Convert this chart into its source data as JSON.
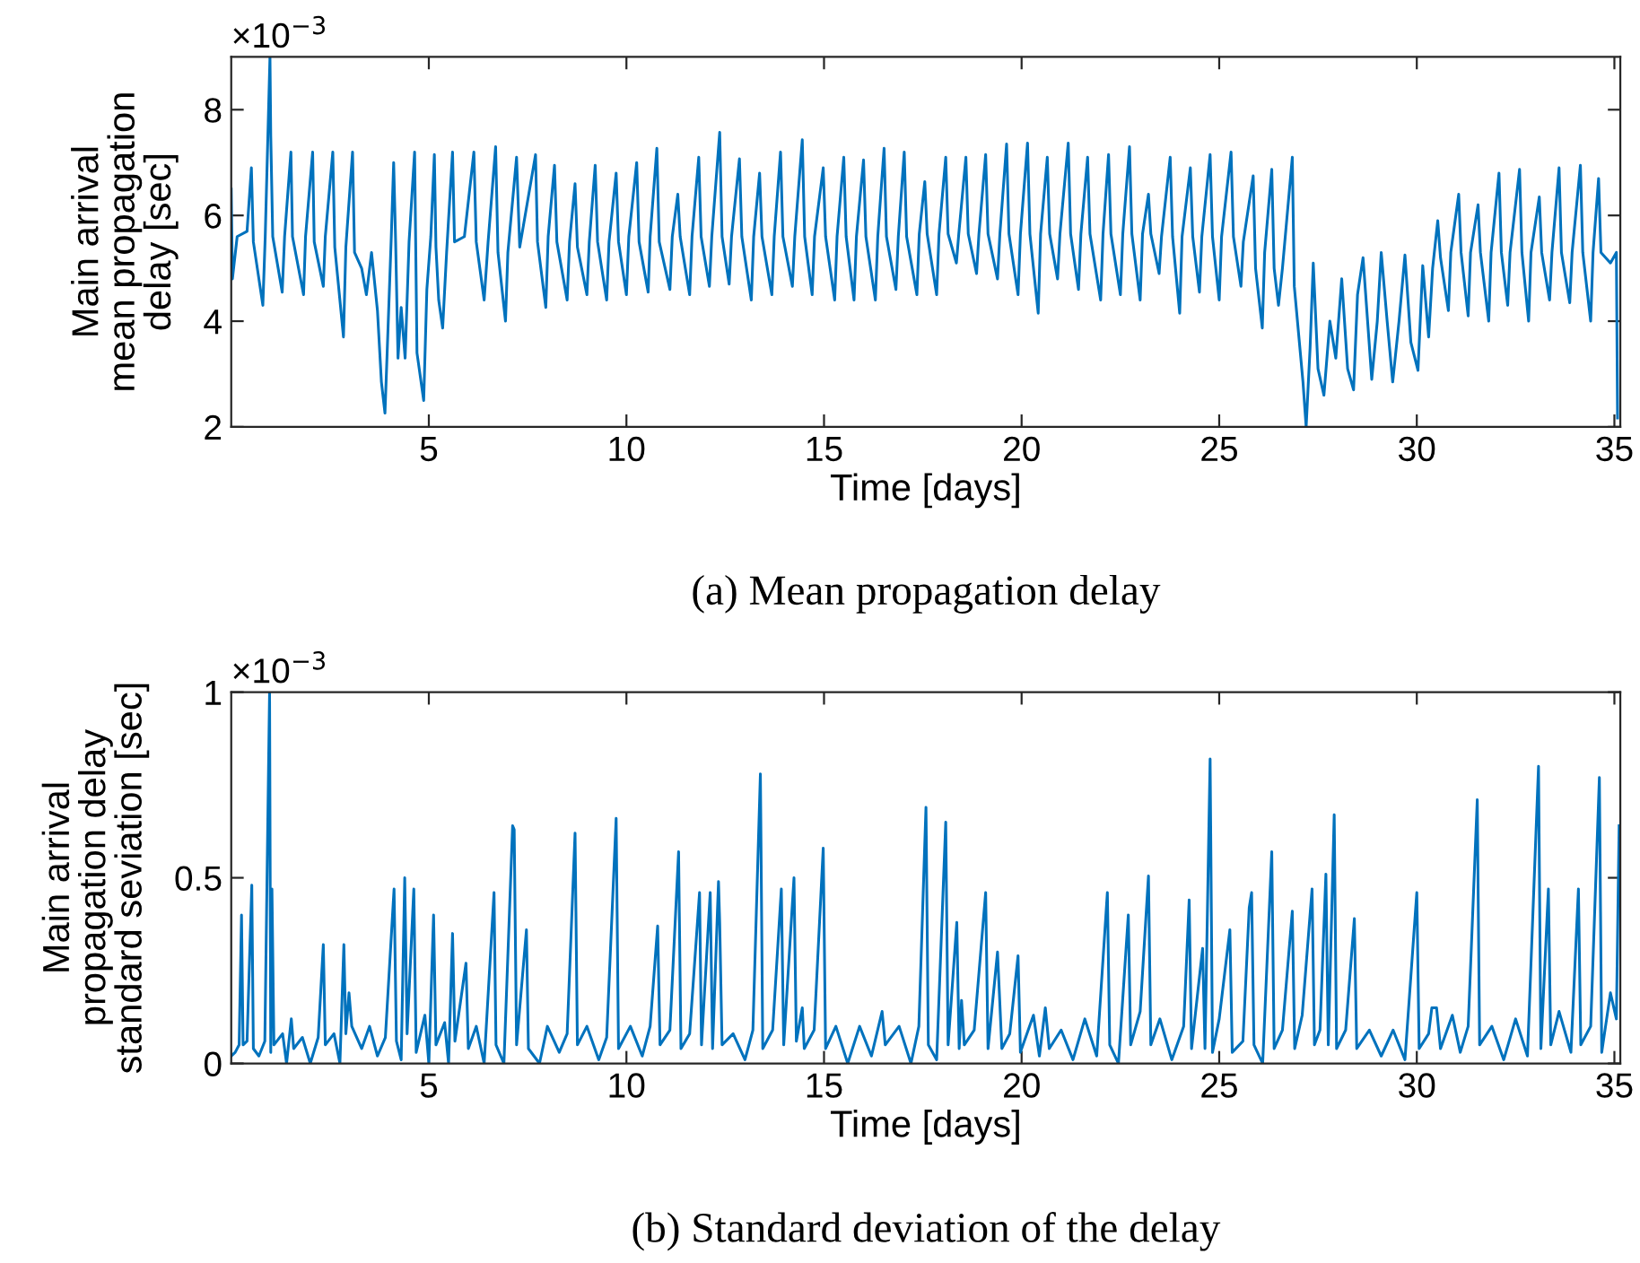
{
  "chart_data": [
    {
      "type": "line",
      "xlabel": "Time [days]",
      "ylabel": "Main arrival\nmean propagation\ndelay [sec]",
      "annotations": [
        "×10$^{−3}$",
        "(a) Mean propagation delay"
      ],
      "xlim": [
        0,
        35.15
      ],
      "xticks": [
        5,
        10,
        15,
        20,
        25,
        30,
        35
      ],
      "ylim": [
        2,
        9
      ],
      "yticks": [
        2,
        4,
        6,
        8
      ],
      "grid": false,
      "series": [
        {
          "color": "#0072bd",
          "x": [
            0.0,
            0.03,
            0.15,
            0.4,
            0.51,
            0.56,
            0.8,
            0.86,
            0.98,
            1.0,
            1.05,
            1.29,
            1.35,
            1.51,
            1.55,
            1.83,
            1.88,
            2.06,
            2.1,
            2.33,
            2.38,
            2.57,
            2.62,
            2.84,
            2.9,
            3.07,
            3.12,
            3.3,
            3.42,
            3.55,
            3.7,
            3.8,
            3.89,
            3.95,
            4.05,
            4.11,
            4.16,
            4.22,
            4.3,
            4.4,
            4.5,
            4.64,
            4.7,
            4.87,
            4.95,
            5.05,
            5.14,
            5.18,
            5.25,
            5.35,
            5.45,
            5.6,
            5.65,
            5.9,
            6.14,
            6.2,
            6.4,
            6.5,
            6.69,
            6.75,
            6.94,
            7.0,
            7.22,
            7.3,
            7.7,
            7.75,
            7.96,
            8.02,
            8.18,
            8.24,
            8.5,
            8.56,
            8.7,
            8.76,
            9.0,
            9.06,
            9.21,
            9.27,
            9.5,
            9.56,
            9.74,
            9.8,
            10.0,
            10.06,
            10.26,
            10.32,
            10.55,
            10.6,
            10.77,
            10.83,
            11.1,
            11.16,
            11.3,
            11.36,
            11.6,
            11.66,
            11.83,
            11.89,
            12.1,
            12.16,
            12.36,
            12.42,
            12.6,
            12.66,
            12.86,
            12.92,
            13.16,
            13.22,
            13.37,
            13.43,
            13.68,
            13.74,
            13.9,
            13.96,
            14.2,
            14.26,
            14.45,
            14.51,
            14.7,
            14.76,
            14.98,
            15.04,
            15.27,
            15.33,
            15.5,
            15.56,
            15.76,
            15.82,
            16.0,
            16.06,
            16.3,
            16.36,
            16.52,
            16.58,
            16.82,
            16.88,
            17.03,
            17.09,
            17.35,
            17.41,
            17.55,
            17.61,
            17.85,
            17.91,
            18.08,
            18.14,
            18.35,
            18.41,
            18.59,
            18.65,
            18.86,
            18.92,
            19.09,
            19.15,
            19.39,
            19.45,
            19.62,
            19.68,
            19.91,
            19.97,
            20.15,
            20.21,
            20.42,
            20.48,
            20.65,
            20.71,
            20.91,
            20.97,
            21.18,
            21.24,
            21.44,
            21.5,
            21.67,
            21.73,
            22.0,
            22.06,
            22.2,
            22.26,
            22.5,
            22.56,
            22.73,
            22.79,
            23.0,
            23.06,
            23.21,
            23.27,
            23.48,
            23.54,
            23.76,
            23.82,
            24.0,
            24.06,
            24.27,
            24.33,
            24.5,
            24.56,
            24.77,
            24.83,
            25.0,
            25.06,
            25.3,
            25.36,
            25.55,
            25.61,
            25.86,
            25.92,
            26.09,
            26.15,
            26.33,
            26.39,
            26.5,
            26.6,
            26.85,
            26.9,
            27.12,
            27.2,
            27.3,
            27.38,
            27.5,
            27.65,
            27.8,
            27.95,
            28.1,
            28.25,
            28.4,
            28.5,
            28.64,
            28.86,
            29.0,
            29.1,
            29.25,
            29.39,
            29.55,
            29.7,
            29.85,
            30.03,
            30.15,
            30.3,
            30.4,
            30.53,
            30.6,
            30.8,
            30.86,
            31.06,
            31.12,
            31.3,
            31.36,
            31.55,
            31.61,
            31.82,
            31.88,
            32.08,
            32.14,
            32.3,
            32.36,
            32.6,
            32.66,
            32.83,
            32.89,
            33.1,
            33.16,
            33.36,
            33.42,
            33.6,
            33.66,
            33.87,
            33.93,
            34.14,
            34.2,
            34.4,
            34.46,
            34.6,
            34.66,
            34.9,
            35.05,
            35.08
          ],
          "values": [
            6.5,
            4.8,
            5.6,
            5.7,
            6.9,
            5.5,
            4.3,
            5.6,
            9.0,
            7.5,
            5.6,
            4.55,
            5.6,
            7.2,
            5.6,
            4.5,
            5.6,
            7.2,
            5.5,
            4.66,
            5.6,
            7.2,
            5.4,
            3.7,
            5.4,
            7.2,
            5.3,
            5.0,
            4.5,
            5.3,
            4.2,
            2.85,
            2.26,
            3.5,
            5.6,
            7.0,
            5.5,
            3.3,
            4.26,
            3.3,
            5.5,
            7.2,
            3.4,
            2.5,
            4.6,
            5.6,
            7.15,
            5.4,
            4.4,
            3.87,
            5.3,
            7.2,
            5.5,
            5.6,
            7.2,
            5.5,
            4.4,
            5.5,
            7.3,
            5.3,
            4.0,
            5.3,
            7.1,
            5.4,
            7.15,
            5.5,
            4.26,
            5.6,
            6.95,
            5.5,
            4.4,
            5.5,
            6.6,
            5.4,
            4.5,
            5.5,
            6.95,
            5.5,
            4.4,
            5.5,
            6.8,
            5.5,
            4.5,
            5.6,
            7.0,
            5.5,
            4.55,
            5.6,
            7.27,
            5.5,
            4.6,
            5.6,
            6.4,
            5.6,
            4.5,
            5.6,
            7.1,
            5.6,
            4.66,
            5.6,
            7.57,
            5.6,
            4.7,
            5.6,
            7.07,
            5.6,
            4.4,
            5.6,
            6.8,
            5.6,
            4.5,
            5.6,
            7.2,
            5.6,
            4.66,
            5.6,
            7.43,
            5.6,
            4.5,
            5.6,
            6.9,
            5.6,
            4.4,
            5.6,
            7.1,
            5.6,
            4.4,
            5.6,
            7.05,
            5.6,
            4.4,
            5.6,
            7.27,
            5.6,
            4.6,
            5.6,
            7.2,
            5.6,
            4.5,
            5.65,
            6.64,
            5.65,
            4.5,
            5.65,
            7.1,
            5.65,
            5.1,
            5.65,
            7.1,
            5.65,
            4.9,
            5.65,
            7.15,
            5.65,
            4.8,
            5.65,
            7.35,
            5.65,
            4.5,
            5.65,
            7.37,
            5.65,
            4.15,
            5.65,
            7.1,
            5.65,
            4.8,
            5.65,
            7.37,
            5.65,
            4.6,
            5.65,
            7.1,
            5.65,
            4.4,
            5.65,
            7.15,
            5.65,
            4.5,
            5.65,
            7.3,
            5.65,
            4.4,
            5.65,
            6.4,
            5.65,
            4.9,
            5.6,
            7.1,
            5.6,
            4.15,
            5.6,
            6.9,
            5.6,
            4.55,
            5.6,
            7.15,
            5.6,
            4.4,
            5.6,
            7.2,
            5.6,
            4.66,
            5.5,
            6.75,
            5.0,
            3.87,
            5.3,
            6.87,
            5.0,
            4.3,
            5.0,
            7.1,
            4.66,
            2.85,
            2.0,
            3.5,
            5.1,
            3.1,
            2.6,
            4.0,
            3.3,
            4.8,
            3.1,
            2.7,
            4.5,
            5.2,
            2.9,
            4.0,
            5.3,
            4.0,
            2.85,
            4.0,
            5.25,
            3.6,
            3.07,
            5.05,
            3.7,
            5.0,
            5.9,
            5.2,
            4.2,
            5.3,
            6.4,
            5.3,
            4.1,
            5.3,
            6.2,
            5.3,
            4.0,
            5.3,
            6.8,
            5.3,
            4.3,
            5.3,
            6.87,
            5.3,
            4.0,
            5.3,
            6.35,
            5.3,
            4.4,
            5.3,
            6.9,
            5.3,
            4.35,
            5.3,
            6.95,
            5.3,
            4.0,
            5.3,
            6.7,
            5.3,
            5.1,
            5.3,
            2.17
          ]
        }
      ]
    },
    {
      "type": "line",
      "xlabel": "Time [days]",
      "ylabel": "Main arrival\npropagation delay\nstandard seviation [sec]",
      "annotations": [
        "×10$^{−3}$",
        "(b) Standard deviation of the delay"
      ],
      "xlim": [
        0,
        35.15
      ],
      "xticks": [
        5,
        10,
        15,
        20,
        25,
        30,
        35
      ],
      "ylim": [
        0,
        1
      ],
      "yticks": [
        0,
        0.5,
        1
      ],
      "grid": false,
      "series": [
        {
          "color": "#0072bd",
          "x": [
            0.0,
            0.1,
            0.2,
            0.26,
            0.3,
            0.4,
            0.52,
            0.56,
            0.7,
            0.85,
            0.97,
            1.0,
            1.03,
            1.08,
            1.3,
            1.4,
            1.52,
            1.58,
            1.8,
            2.0,
            2.2,
            2.33,
            2.38,
            2.6,
            2.75,
            2.85,
            2.9,
            2.98,
            3.05,
            3.3,
            3.5,
            3.7,
            3.9,
            4.12,
            4.18,
            4.3,
            4.39,
            4.45,
            4.62,
            4.68,
            4.9,
            5.0,
            5.12,
            5.18,
            5.4,
            5.5,
            5.6,
            5.66,
            5.94,
            6.0,
            6.2,
            6.4,
            6.65,
            6.7,
            6.9,
            7.12,
            7.16,
            7.22,
            7.47,
            7.52,
            7.8,
            8.0,
            8.3,
            8.5,
            8.7,
            8.76,
            9.0,
            9.3,
            9.5,
            9.74,
            9.8,
            10.1,
            10.4,
            10.6,
            10.79,
            10.85,
            11.1,
            11.32,
            11.38,
            11.6,
            11.85,
            11.9,
            12.12,
            12.18,
            12.33,
            12.36,
            12.42,
            12.7,
            13.0,
            13.2,
            13.39,
            13.45,
            13.7,
            13.92,
            13.98,
            14.24,
            14.3,
            14.45,
            14.5,
            14.75,
            14.98,
            15.04,
            15.3,
            15.6,
            15.9,
            16.2,
            16.47,
            16.55,
            16.9,
            17.2,
            17.4,
            17.58,
            17.64,
            17.85,
            18.08,
            18.14,
            18.36,
            18.42,
            18.48,
            18.55,
            18.8,
            19.09,
            19.15,
            19.39,
            19.45,
            19.5,
            19.7,
            19.91,
            19.97,
            20.3,
            20.45,
            20.6,
            20.7,
            21.0,
            21.3,
            21.6,
            21.9,
            22.17,
            22.23,
            22.45,
            22.7,
            22.76,
            23.0,
            23.21,
            23.27,
            23.5,
            23.8,
            24.1,
            24.24,
            24.3,
            24.58,
            24.64,
            24.77,
            24.83,
            25.0,
            25.27,
            25.33,
            25.6,
            25.76,
            25.82,
            25.88,
            26.1,
            26.33,
            26.39,
            26.6,
            26.85,
            26.91,
            27.1,
            27.35,
            27.41,
            27.55,
            27.7,
            27.76,
            27.85,
            27.91,
            27.97,
            28.2,
            28.42,
            28.48,
            28.8,
            29.1,
            29.4,
            29.7,
            30.0,
            30.06,
            30.3,
            30.38,
            30.5,
            30.6,
            30.9,
            31.1,
            31.3,
            31.53,
            31.59,
            31.9,
            32.2,
            32.5,
            32.8,
            33.08,
            33.14,
            33.33,
            33.39,
            33.6,
            33.9,
            34.09,
            34.15,
            34.4,
            34.62,
            34.68,
            34.9,
            35.05,
            35.12
          ],
          "values": [
            0.02,
            0.03,
            0.05,
            0.4,
            0.05,
            0.06,
            0.48,
            0.04,
            0.02,
            0.06,
            1.0,
            0.03,
            0.47,
            0.05,
            0.08,
            0.0,
            0.12,
            0.04,
            0.07,
            0.0,
            0.07,
            0.32,
            0.05,
            0.08,
            0.0,
            0.32,
            0.08,
            0.19,
            0.1,
            0.04,
            0.1,
            0.02,
            0.07,
            0.47,
            0.06,
            0.01,
            0.5,
            0.08,
            0.47,
            0.03,
            0.13,
            0.0,
            0.4,
            0.05,
            0.11,
            0.0,
            0.35,
            0.06,
            0.27,
            0.04,
            0.1,
            0.0,
            0.46,
            0.05,
            0.0,
            0.64,
            0.63,
            0.05,
            0.36,
            0.04,
            0.0,
            0.1,
            0.03,
            0.08,
            0.62,
            0.05,
            0.1,
            0.01,
            0.07,
            0.66,
            0.04,
            0.1,
            0.02,
            0.1,
            0.37,
            0.05,
            0.09,
            0.57,
            0.04,
            0.08,
            0.46,
            0.05,
            0.46,
            0.04,
            0.49,
            0.38,
            0.05,
            0.08,
            0.01,
            0.09,
            0.78,
            0.04,
            0.09,
            0.47,
            0.05,
            0.5,
            0.06,
            0.15,
            0.04,
            0.09,
            0.58,
            0.04,
            0.1,
            0.0,
            0.1,
            0.02,
            0.14,
            0.05,
            0.1,
            0.0,
            0.1,
            0.69,
            0.05,
            0.01,
            0.65,
            0.05,
            0.38,
            0.04,
            0.17,
            0.05,
            0.09,
            0.46,
            0.04,
            0.3,
            0.16,
            0.04,
            0.08,
            0.29,
            0.03,
            0.13,
            0.02,
            0.15,
            0.04,
            0.09,
            0.01,
            0.12,
            0.02,
            0.46,
            0.05,
            0.0,
            0.4,
            0.05,
            0.14,
            0.505,
            0.05,
            0.12,
            0.01,
            0.1,
            0.44,
            0.04,
            0.31,
            0.04,
            0.82,
            0.03,
            0.12,
            0.36,
            0.03,
            0.06,
            0.42,
            0.46,
            0.05,
            0.0,
            0.57,
            0.04,
            0.09,
            0.41,
            0.04,
            0.13,
            0.47,
            0.05,
            0.09,
            0.51,
            0.05,
            0.42,
            0.67,
            0.04,
            0.09,
            0.39,
            0.04,
            0.09,
            0.02,
            0.09,
            0.01,
            0.46,
            0.04,
            0.08,
            0.15,
            0.15,
            0.04,
            0.13,
            0.03,
            0.1,
            0.71,
            0.05,
            0.1,
            0.01,
            0.12,
            0.02,
            0.8,
            0.04,
            0.47,
            0.05,
            0.14,
            0.03,
            0.47,
            0.05,
            0.1,
            0.77,
            0.03,
            0.19,
            0.12,
            0.64
          ]
        }
      ]
    }
  ]
}
